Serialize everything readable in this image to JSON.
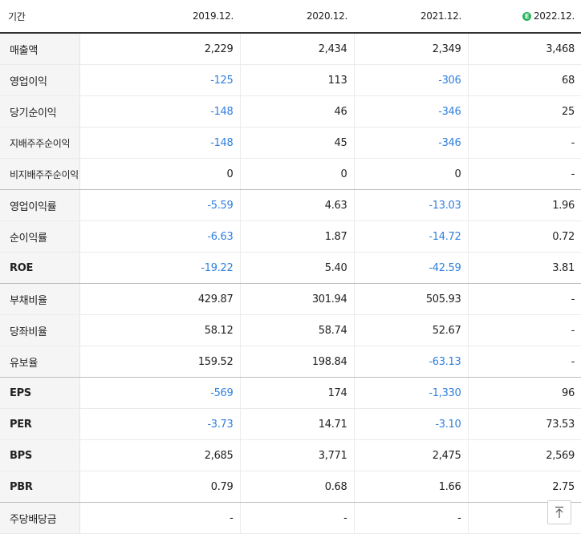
{
  "header": {
    "label": "기간",
    "estimate_icon": "estimate-badge-icon",
    "estimate_mark": "E",
    "periods": [
      "2019.12.",
      "2020.12.",
      "2021.12.",
      "2022.12."
    ]
  },
  "rows": [
    {
      "label": "매출액",
      "values": [
        "2,229",
        "2,434",
        "2,349",
        "3,468"
      ]
    },
    {
      "label": "영업이익",
      "values": [
        "-125",
        "113",
        "-306",
        "68"
      ]
    },
    {
      "label": "당기순이익",
      "values": [
        "-148",
        "46",
        "-346",
        "25"
      ]
    },
    {
      "label": "지배주주순이익",
      "values": [
        "-148",
        "45",
        "-346",
        "-"
      ]
    },
    {
      "label": "비지배주주순이익",
      "values": [
        "0",
        "0",
        "0",
        "-"
      ]
    },
    {
      "label": "영업이익률",
      "values": [
        "-5.59",
        "4.63",
        "-13.03",
        "1.96"
      ]
    },
    {
      "label": "순이익률",
      "values": [
        "-6.63",
        "1.87",
        "-14.72",
        "0.72"
      ]
    },
    {
      "label": "ROE",
      "values": [
        "-19.22",
        "5.40",
        "-42.59",
        "3.81"
      ]
    },
    {
      "label": "부채비율",
      "values": [
        "429.87",
        "301.94",
        "505.93",
        "-"
      ]
    },
    {
      "label": "당좌비율",
      "values": [
        "58.12",
        "58.74",
        "52.67",
        "-"
      ]
    },
    {
      "label": "유보율",
      "values": [
        "159.52",
        "198.84",
        "-63.13",
        "-"
      ]
    },
    {
      "label": "EPS",
      "values": [
        "-569",
        "174",
        "-1,330",
        "96"
      ]
    },
    {
      "label": "PER",
      "values": [
        "-3.73",
        "14.71",
        "-3.10",
        "73.53"
      ]
    },
    {
      "label": "BPS",
      "values": [
        "2,685",
        "3,771",
        "2,475",
        "2,569"
      ]
    },
    {
      "label": "PBR",
      "values": [
        "0.79",
        "0.68",
        "1.66",
        "2.75"
      ]
    },
    {
      "label": "주당배당금",
      "values": [
        "-",
        "-",
        "-",
        ""
      ]
    }
  ],
  "colors": {
    "negative": "#2f7fe0",
    "estimate_badge": "#2bb45f"
  },
  "scroll_top_button": {
    "icon": "arrow-up-icon"
  }
}
